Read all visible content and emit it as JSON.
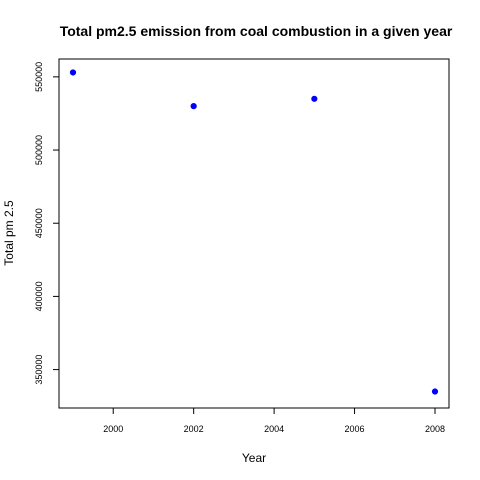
{
  "chart_data": {
    "type": "scatter",
    "title": "Total pm2.5 emission from coal combustion in a given year",
    "xlabel": "Year",
    "ylabel": "Total pm 2.5",
    "x_ticks": [
      2000,
      2002,
      2004,
      2006,
      2008
    ],
    "y_ticks": [
      350000,
      400000,
      450000,
      500000,
      550000
    ],
    "x_tick_labels": [
      "2000",
      "2002",
      "2004",
      "2006",
      "2008"
    ],
    "y_tick_labels": [
      "350000",
      "400000",
      "450000",
      "500000",
      "550000"
    ],
    "xlim": [
      1999,
      2008
    ],
    "ylim": [
      334000,
      554000
    ],
    "grid": false,
    "legend": "none",
    "point_color": "#0000ff",
    "points": [
      {
        "x": 1999,
        "y": 553000
      },
      {
        "x": 2002,
        "y": 530000
      },
      {
        "x": 2005,
        "y": 535000
      },
      {
        "x": 2008,
        "y": 335000
      }
    ]
  }
}
